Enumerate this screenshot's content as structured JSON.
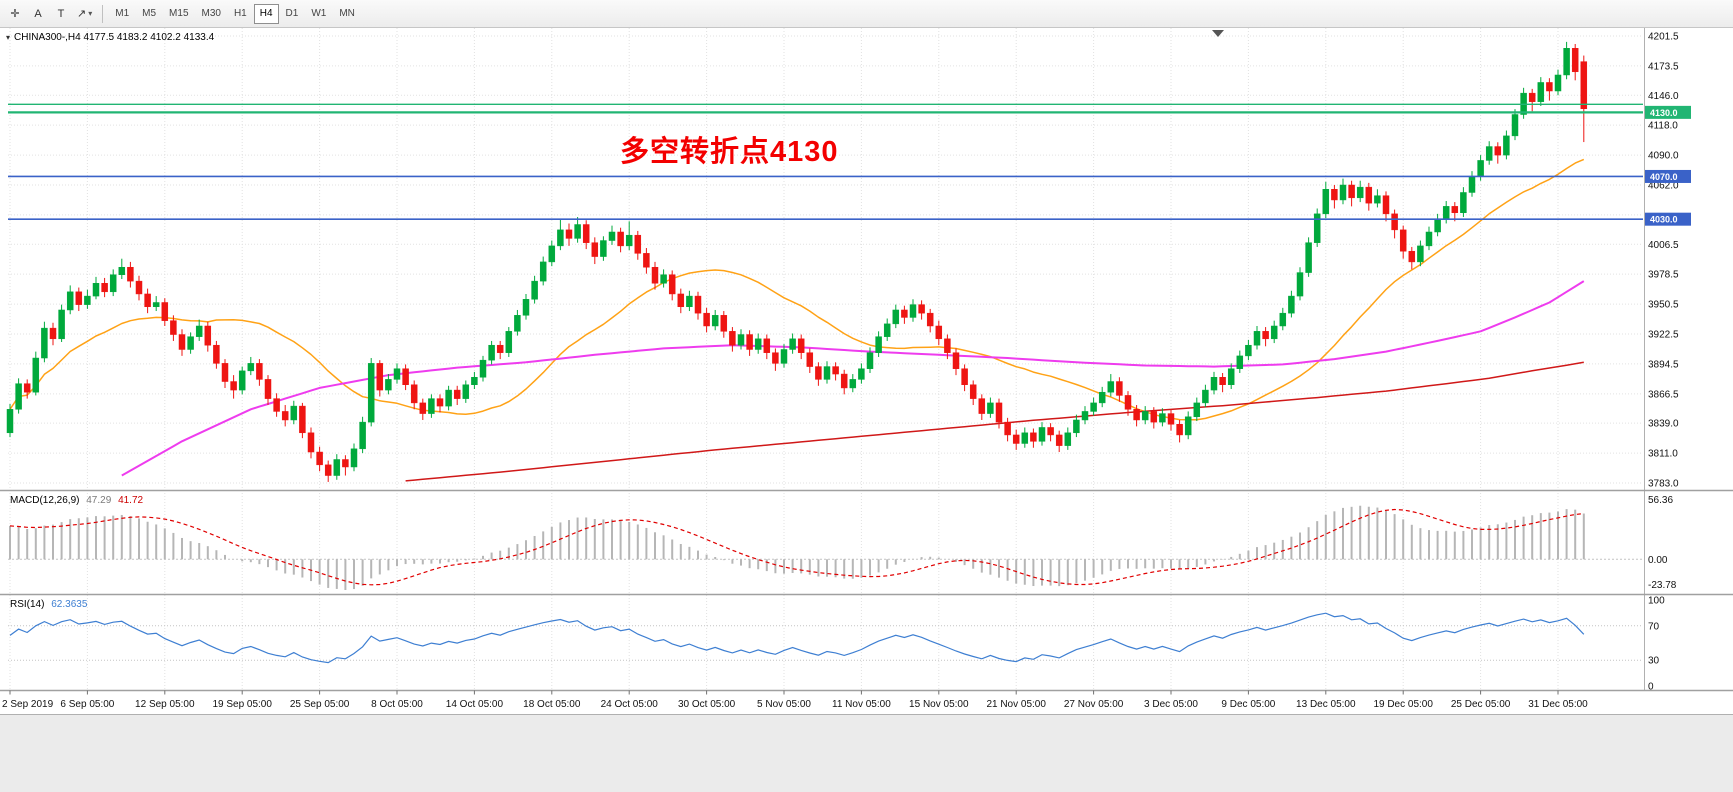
{
  "toolbar": {
    "tools": [
      {
        "id": "crosshair",
        "glyph": "✛",
        "caret": false
      },
      {
        "id": "label-a",
        "glyph": "A",
        "caret": false
      },
      {
        "id": "text-t",
        "glyph": "T",
        "caret": false
      },
      {
        "id": "arrow",
        "glyph": "↗",
        "caret": true
      }
    ],
    "timeframes": [
      "M1",
      "M5",
      "M15",
      "M30",
      "H1",
      "H4",
      "D1",
      "W1",
      "MN"
    ],
    "active_timeframe": "H4"
  },
  "chart": {
    "symbol_ohlc_line": "CHINA300-,H4  4177.5 4183.2 4102.2 4133.4",
    "annotation": {
      "text": "多空转折点4130",
      "color": "#f30000"
    },
    "price_axis": {
      "max": 4201.5,
      "min": 3783.0,
      "ticks": [
        4201.5,
        4173.5,
        4146.0,
        4118.0,
        4090.0,
        4062.0,
        4034.0,
        4006.5,
        3978.5,
        3950.5,
        3922.5,
        3894.5,
        3866.5,
        3839.0,
        3811.0,
        3783.0
      ]
    },
    "hlines": [
      {
        "price": 4137.5,
        "color": "#21b573",
        "tag": null,
        "width": 1.4
      },
      {
        "price": 4130.0,
        "color": "#21b573",
        "tag": "4130.0",
        "width": 2.2
      },
      {
        "price": 4070.0,
        "color": "#3a62c8",
        "tag": "4070.0",
        "width": 1.6
      },
      {
        "price": 4030.0,
        "color": "#3a62c8",
        "tag": "4030.0",
        "width": 1.6
      }
    ],
    "colors": {
      "up": "#00a93c",
      "down": "#ee1512",
      "ma_fast": "#ffa216",
      "ma_mid": "#ee3cee",
      "ma_slow": "#d01818",
      "grid": "#e2e2e2",
      "rsi": "#3e7fd2",
      "macd_hist": "#b6b6b6",
      "macd_signal": "#e00000"
    },
    "ma_fast_period": 24,
    "ma_mid_points": [
      [
        13,
        3790
      ],
      [
        20,
        3822
      ],
      [
        28,
        3852
      ],
      [
        36,
        3872
      ],
      [
        44,
        3884
      ],
      [
        52,
        3891
      ],
      [
        60,
        3896
      ],
      [
        68,
        3903
      ],
      [
        76,
        3909
      ],
      [
        84,
        3912
      ],
      [
        92,
        3910
      ],
      [
        100,
        3906
      ],
      [
        108,
        3903
      ],
      [
        116,
        3900
      ],
      [
        124,
        3896
      ],
      [
        132,
        3893
      ],
      [
        140,
        3892
      ],
      [
        148,
        3894
      ],
      [
        154,
        3899
      ],
      [
        160,
        3906
      ],
      [
        166,
        3916
      ],
      [
        171,
        3925
      ],
      [
        175,
        3938
      ],
      [
        179,
        3952
      ],
      [
        183,
        3972
      ]
    ],
    "ma_slow_points": [
      [
        46,
        3785
      ],
      [
        58,
        3794
      ],
      [
        70,
        3804
      ],
      [
        82,
        3814
      ],
      [
        94,
        3823
      ],
      [
        106,
        3832
      ],
      [
        118,
        3841
      ],
      [
        130,
        3849
      ],
      [
        142,
        3856
      ],
      [
        152,
        3863
      ],
      [
        160,
        3869
      ],
      [
        166,
        3875
      ],
      [
        172,
        3881
      ],
      [
        177,
        3888
      ],
      [
        183,
        3896
      ]
    ]
  },
  "macd": {
    "name": "MACD(12,26,9)",
    "value_main": "47.29",
    "value_signal": "41.72",
    "axis_labels": [
      "56.36",
      "0.00",
      "-23.78"
    ],
    "params": {
      "fast": 12,
      "slow": 26,
      "signal": 9
    }
  },
  "rsi": {
    "name": "RSI(14)",
    "value": "62.3635",
    "axis_labels": [
      "100",
      "70",
      "30",
      "0"
    ],
    "levels": [
      70,
      30
    ],
    "period": 14
  },
  "time_axis": {
    "candles_per_label": 9,
    "labels": [
      "2 Sep 2019",
      "6 Sep 05:00",
      "12 Sep 05:00",
      "19 Sep 05:00",
      "25 Sep 05:00",
      "8 Oct 05:00",
      "14 Oct 05:00",
      "18 Oct 05:00",
      "24 Oct 05:00",
      "30 Oct 05:00",
      "5 Nov 05:00",
      "11 Nov 05:00",
      "15 Nov 05:00",
      "21 Nov 05:00",
      "27 Nov 05:00",
      "3 Dec 05:00",
      "9 Dec 05:00",
      "13 Dec 05:00",
      "19 Dec 05:00",
      "25 Dec 05:00",
      "31 Dec 05:00"
    ]
  },
  "chart_data": {
    "type": "candlestick",
    "symbol": "CHINA300-",
    "timeframe": "H4",
    "title": "CHINA300-,H4",
    "ylim": [
      3783.0,
      4201.5
    ],
    "last_ohlc": {
      "open": 4177.5,
      "high": 4183.2,
      "low": 4102.2,
      "close": 4133.4
    },
    "ohlc": [
      [
        3830,
        3857,
        3826,
        3852
      ],
      [
        3852,
        3881,
        3848,
        3876
      ],
      [
        3876,
        3880,
        3862,
        3868
      ],
      [
        3868,
        3906,
        3865,
        3900
      ],
      [
        3900,
        3934,
        3896,
        3928
      ],
      [
        3928,
        3933,
        3912,
        3918
      ],
      [
        3918,
        3950,
        3915,
        3945
      ],
      [
        3945,
        3968,
        3941,
        3962
      ],
      [
        3962,
        3966,
        3944,
        3950
      ],
      [
        3950,
        3964,
        3946,
        3958
      ],
      [
        3958,
        3976,
        3955,
        3970
      ],
      [
        3970,
        3975,
        3957,
        3962
      ],
      [
        3962,
        3983,
        3958,
        3978
      ],
      [
        3978,
        3993,
        3974,
        3985
      ],
      [
        3985,
        3990,
        3966,
        3972
      ],
      [
        3972,
        3977,
        3954,
        3960
      ],
      [
        3960,
        3965,
        3942,
        3948
      ],
      [
        3948,
        3958,
        3944,
        3952
      ],
      [
        3952,
        3956,
        3930,
        3935
      ],
      [
        3935,
        3940,
        3916,
        3922
      ],
      [
        3922,
        3927,
        3902,
        3908
      ],
      [
        3908,
        3924,
        3904,
        3920
      ],
      [
        3920,
        3936,
        3916,
        3930
      ],
      [
        3930,
        3934,
        3906,
        3912
      ],
      [
        3912,
        3916,
        3890,
        3895
      ],
      [
        3895,
        3899,
        3872,
        3878
      ],
      [
        3878,
        3884,
        3862,
        3870
      ],
      [
        3870,
        3892,
        3866,
        3888
      ],
      [
        3888,
        3901,
        3884,
        3895
      ],
      [
        3895,
        3899,
        3874,
        3880
      ],
      [
        3880,
        3884,
        3856,
        3862
      ],
      [
        3862,
        3867,
        3845,
        3850
      ],
      [
        3850,
        3856,
        3836,
        3842
      ],
      [
        3842,
        3860,
        3838,
        3855
      ],
      [
        3855,
        3858,
        3825,
        3830
      ],
      [
        3830,
        3835,
        3806,
        3812
      ],
      [
        3812,
        3817,
        3794,
        3800
      ],
      [
        3800,
        3804,
        3784,
        3790
      ],
      [
        3790,
        3810,
        3786,
        3805
      ],
      [
        3805,
        3809,
        3790,
        3798
      ],
      [
        3798,
        3820,
        3794,
        3815
      ],
      [
        3815,
        3845,
        3811,
        3840
      ],
      [
        3840,
        3900,
        3836,
        3895
      ],
      [
        3895,
        3898,
        3864,
        3870
      ],
      [
        3870,
        3885,
        3866,
        3880
      ],
      [
        3880,
        3895,
        3876,
        3890
      ],
      [
        3890,
        3894,
        3870,
        3875
      ],
      [
        3875,
        3879,
        3852,
        3858
      ],
      [
        3858,
        3862,
        3842,
        3848
      ],
      [
        3848,
        3866,
        3844,
        3862
      ],
      [
        3862,
        3866,
        3849,
        3855
      ],
      [
        3855,
        3874,
        3851,
        3870
      ],
      [
        3870,
        3874,
        3856,
        3862
      ],
      [
        3862,
        3879,
        3858,
        3875
      ],
      [
        3875,
        3887,
        3871,
        3882
      ],
      [
        3882,
        3902,
        3878,
        3898
      ],
      [
        3898,
        3916,
        3894,
        3912
      ],
      [
        3912,
        3916,
        3899,
        3905
      ],
      [
        3905,
        3929,
        3901,
        3925
      ],
      [
        3925,
        3945,
        3921,
        3940
      ],
      [
        3940,
        3960,
        3936,
        3955
      ],
      [
        3955,
        3977,
        3951,
        3972
      ],
      [
        3972,
        3995,
        3968,
        3990
      ],
      [
        3990,
        4010,
        3986,
        4005
      ],
      [
        4005,
        4030,
        4001,
        4020
      ],
      [
        4020,
        4026,
        4005,
        4012
      ],
      [
        4012,
        4032,
        4008,
        4025
      ],
      [
        4025,
        4029,
        4002,
        4008
      ],
      [
        4008,
        4013,
        3988,
        3995
      ],
      [
        3995,
        4014,
        3991,
        4010
      ],
      [
        4010,
        4024,
        4006,
        4018
      ],
      [
        4018,
        4022,
        3999,
        4005
      ],
      [
        4005,
        4028,
        4001,
        4015
      ],
      [
        4015,
        4019,
        3992,
        3998
      ],
      [
        3998,
        4003,
        3979,
        3985
      ],
      [
        3985,
        3990,
        3964,
        3970
      ],
      [
        3970,
        3983,
        3966,
        3978
      ],
      [
        3978,
        3982,
        3954,
        3960
      ],
      [
        3960,
        3965,
        3942,
        3948
      ],
      [
        3948,
        3963,
        3944,
        3958
      ],
      [
        3958,
        3962,
        3936,
        3942
      ],
      [
        3942,
        3947,
        3924,
        3930
      ],
      [
        3930,
        3945,
        3926,
        3940
      ],
      [
        3940,
        3944,
        3919,
        3925
      ],
      [
        3925,
        3929,
        3906,
        3912
      ],
      [
        3912,
        3927,
        3908,
        3922
      ],
      [
        3922,
        3926,
        3902,
        3908
      ],
      [
        3908,
        3923,
        3904,
        3918
      ],
      [
        3918,
        3922,
        3899,
        3905
      ],
      [
        3905,
        3909,
        3888,
        3895
      ],
      [
        3895,
        3913,
        3891,
        3908
      ],
      [
        3908,
        3923,
        3904,
        3918
      ],
      [
        3918,
        3922,
        3899,
        3905
      ],
      [
        3905,
        3909,
        3886,
        3892
      ],
      [
        3892,
        3896,
        3874,
        3880
      ],
      [
        3880,
        3897,
        3876,
        3892
      ],
      [
        3892,
        3896,
        3879,
        3885
      ],
      [
        3885,
        3889,
        3866,
        3872
      ],
      [
        3872,
        3885,
        3868,
        3880
      ],
      [
        3880,
        3895,
        3876,
        3890
      ],
      [
        3890,
        3910,
        3886,
        3905
      ],
      [
        3905,
        3925,
        3901,
        3920
      ],
      [
        3920,
        3937,
        3916,
        3932
      ],
      [
        3932,
        3950,
        3928,
        3945
      ],
      [
        3945,
        3949,
        3932,
        3938
      ],
      [
        3938,
        3955,
        3934,
        3950
      ],
      [
        3950,
        3954,
        3936,
        3942
      ],
      [
        3942,
        3946,
        3924,
        3930
      ],
      [
        3930,
        3935,
        3912,
        3918
      ],
      [
        3918,
        3922,
        3899,
        3905
      ],
      [
        3905,
        3909,
        3884,
        3890
      ],
      [
        3890,
        3894,
        3869,
        3875
      ],
      [
        3875,
        3879,
        3856,
        3862
      ],
      [
        3862,
        3866,
        3842,
        3848
      ],
      [
        3848,
        3863,
        3844,
        3858
      ],
      [
        3858,
        3862,
        3834,
        3840
      ],
      [
        3840,
        3844,
        3822,
        3828
      ],
      [
        3828,
        3833,
        3814,
        3820
      ],
      [
        3820,
        3835,
        3816,
        3830
      ],
      [
        3830,
        3834,
        3816,
        3822
      ],
      [
        3822,
        3840,
        3818,
        3835
      ],
      [
        3835,
        3839,
        3822,
        3828
      ],
      [
        3828,
        3832,
        3812,
        3818
      ],
      [
        3818,
        3835,
        3814,
        3830
      ],
      [
        3830,
        3847,
        3826,
        3842
      ],
      [
        3842,
        3855,
        3838,
        3850
      ],
      [
        3850,
        3863,
        3846,
        3858
      ],
      [
        3858,
        3873,
        3854,
        3868
      ],
      [
        3868,
        3885,
        3864,
        3878
      ],
      [
        3878,
        3882,
        3859,
        3865
      ],
      [
        3865,
        3869,
        3846,
        3852
      ],
      [
        3852,
        3856,
        3836,
        3842
      ],
      [
        3842,
        3855,
        3838,
        3850
      ],
      [
        3850,
        3854,
        3834,
        3840
      ],
      [
        3840,
        3853,
        3836,
        3848
      ],
      [
        3848,
        3852,
        3832,
        3838
      ],
      [
        3838,
        3842,
        3821,
        3828
      ],
      [
        3828,
        3850,
        3824,
        3845
      ],
      [
        3845,
        3863,
        3841,
        3858
      ],
      [
        3858,
        3875,
        3854,
        3870
      ],
      [
        3870,
        3887,
        3866,
        3882
      ],
      [
        3882,
        3886,
        3868,
        3875
      ],
      [
        3875,
        3895,
        3871,
        3890
      ],
      [
        3890,
        3907,
        3886,
        3902
      ],
      [
        3902,
        3917,
        3898,
        3912
      ],
      [
        3912,
        3930,
        3908,
        3925
      ],
      [
        3925,
        3929,
        3911,
        3918
      ],
      [
        3918,
        3935,
        3914,
        3930
      ],
      [
        3930,
        3947,
        3926,
        3942
      ],
      [
        3942,
        3963,
        3938,
        3958
      ],
      [
        3958,
        3985,
        3954,
        3980
      ],
      [
        3980,
        4013,
        3976,
        4008
      ],
      [
        4008,
        4040,
        4004,
        4035
      ],
      [
        4035,
        4065,
        4031,
        4058
      ],
      [
        4058,
        4062,
        4040,
        4048
      ],
      [
        4048,
        4068,
        4044,
        4062
      ],
      [
        4062,
        4066,
        4042,
        4050
      ],
      [
        4050,
        4066,
        4046,
        4060
      ],
      [
        4060,
        4064,
        4038,
        4045
      ],
      [
        4045,
        4058,
        4041,
        4052
      ],
      [
        4052,
        4056,
        4028,
        4035
      ],
      [
        4035,
        4039,
        4012,
        4020
      ],
      [
        4020,
        4024,
        3993,
        4000
      ],
      [
        4000,
        4004,
        3983,
        3990
      ],
      [
        3990,
        4010,
        3986,
        4005
      ],
      [
        4005,
        4023,
        4001,
        4018
      ],
      [
        4018,
        4035,
        4014,
        4030
      ],
      [
        4030,
        4047,
        4026,
        4042
      ],
      [
        4042,
        4046,
        4028,
        4036
      ],
      [
        4036,
        4060,
        4032,
        4055
      ],
      [
        4055,
        4075,
        4051,
        4070
      ],
      [
        4070,
        4090,
        4066,
        4085
      ],
      [
        4085,
        4103,
        4081,
        4098
      ],
      [
        4098,
        4102,
        4082,
        4090
      ],
      [
        4090,
        4113,
        4086,
        4108
      ],
      [
        4108,
        4133,
        4104,
        4128
      ],
      [
        4128,
        4153,
        4124,
        4148
      ],
      [
        4148,
        4152,
        4131,
        4140
      ],
      [
        4140,
        4163,
        4136,
        4158
      ],
      [
        4158,
        4162,
        4141,
        4150
      ],
      [
        4150,
        4170,
        4146,
        4165
      ],
      [
        4165,
        4196,
        4161,
        4190
      ],
      [
        4190,
        4194,
        4160,
        4168
      ],
      [
        4177.5,
        4183.2,
        4102.2,
        4133.4
      ]
    ]
  }
}
